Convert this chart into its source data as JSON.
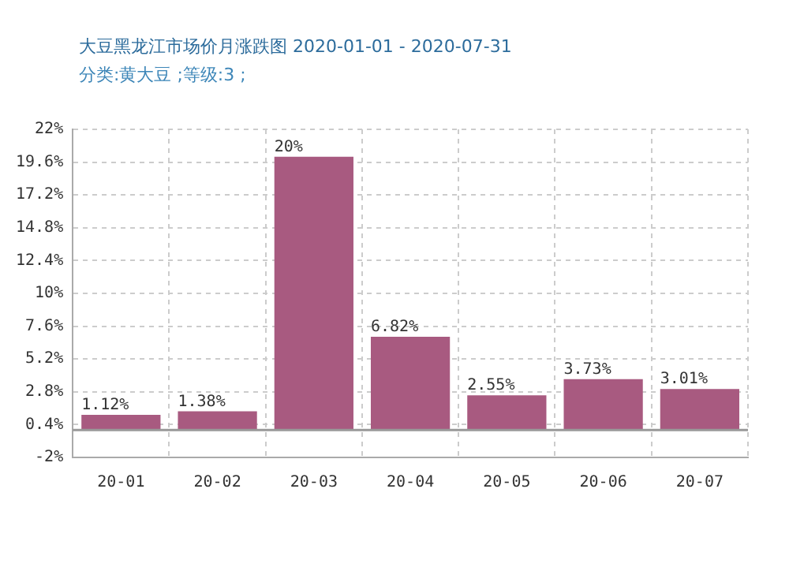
{
  "chart_data": {
    "type": "bar",
    "title": "大豆黑龙江市场价月涨跌图  2020-01-01 - 2020-07-31",
    "subtitle": "分类:黄大豆 ;等级:3 ;",
    "categories": [
      "20-01",
      "20-02",
      "20-03",
      "20-04",
      "20-05",
      "20-06",
      "20-07"
    ],
    "values": [
      1.12,
      1.38,
      20,
      6.82,
      2.55,
      3.73,
      3.01
    ],
    "value_labels": [
      "1.12%",
      "1.38%",
      "20%",
      "6.82%",
      "2.55%",
      "3.73%",
      "3.01%"
    ],
    "color": "#a85a80",
    "ylim": [
      -2,
      22
    ],
    "yticks": [
      {
        "value": -2,
        "label": "-2%"
      },
      {
        "value": 0.4,
        "label": "0.4%"
      },
      {
        "value": 2.8,
        "label": "2.8%"
      },
      {
        "value": 5.2,
        "label": "5.2%"
      },
      {
        "value": 7.6,
        "label": "7.6%"
      },
      {
        "value": 10,
        "label": "10%"
      },
      {
        "value": 12.4,
        "label": "12.4%"
      },
      {
        "value": 14.8,
        "label": "14.8%"
      },
      {
        "value": 17.2,
        "label": "17.2%"
      },
      {
        "value": 19.6,
        "label": "19.6%"
      },
      {
        "value": 22,
        "label": "22%"
      }
    ],
    "ref_lines": [
      {
        "axis": "y",
        "value": 0,
        "color": "#999999"
      }
    ],
    "grid": true,
    "legend": false
  }
}
